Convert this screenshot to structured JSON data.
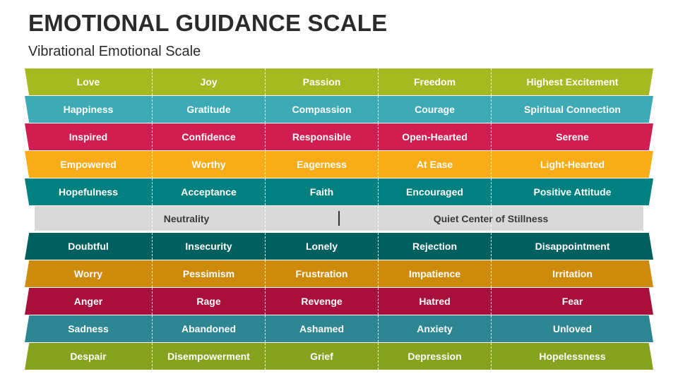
{
  "title": "EMOTIONAL GUIDANCE SCALE",
  "subtitle": "Vibrational Emotional Scale",
  "upper_rows": [
    {
      "color": "#a5b920",
      "cells": [
        "Love",
        "Joy",
        "Passion",
        "Freedom",
        "Highest Excitement"
      ]
    },
    {
      "color": "#3eaab5",
      "cells": [
        "Happiness",
        "Gratitude",
        "Compassion",
        "Courage",
        "Spiritual Connection"
      ]
    },
    {
      "color": "#d11d4f",
      "cells": [
        "Inspired",
        "Confidence",
        "Responsible",
        "Open-Hearted",
        "Serene"
      ]
    },
    {
      "color": "#f8ac17",
      "cells": [
        "Empowered",
        "Worthy",
        "Eagerness",
        "At Ease",
        "Light-Hearted"
      ]
    },
    {
      "color": "#00807f",
      "cells": [
        "Hopefulness",
        "Acceptance",
        "Faith",
        "Encouraged",
        "Positive Attitude"
      ]
    }
  ],
  "neutral": {
    "color": "#d9d9d9",
    "left": "Neutrality",
    "right": "Quiet Center of Stillness"
  },
  "lower_rows": [
    {
      "color": "#005f5f",
      "cells": [
        "Doubtful",
        "Insecurity",
        "Lonely",
        "Rejection",
        "Disappointment"
      ]
    },
    {
      "color": "#cd8a0b",
      "cells": [
        "Worry",
        "Pessimism",
        "Frustration",
        "Impatience",
        "Irritation"
      ]
    },
    {
      "color": "#a80f3c",
      "cells": [
        "Anger",
        "Rage",
        "Revenge",
        "Hatred",
        "Fear"
      ]
    },
    {
      "color": "#2e8692",
      "cells": [
        "Sadness",
        "Abandoned",
        "Ashamed",
        "Anxiety",
        "Unloved"
      ]
    },
    {
      "color": "#87a21f",
      "cells": [
        "Despair",
        "Disempowerment",
        "Grief",
        "Depression",
        "Hopelessness"
      ]
    }
  ]
}
